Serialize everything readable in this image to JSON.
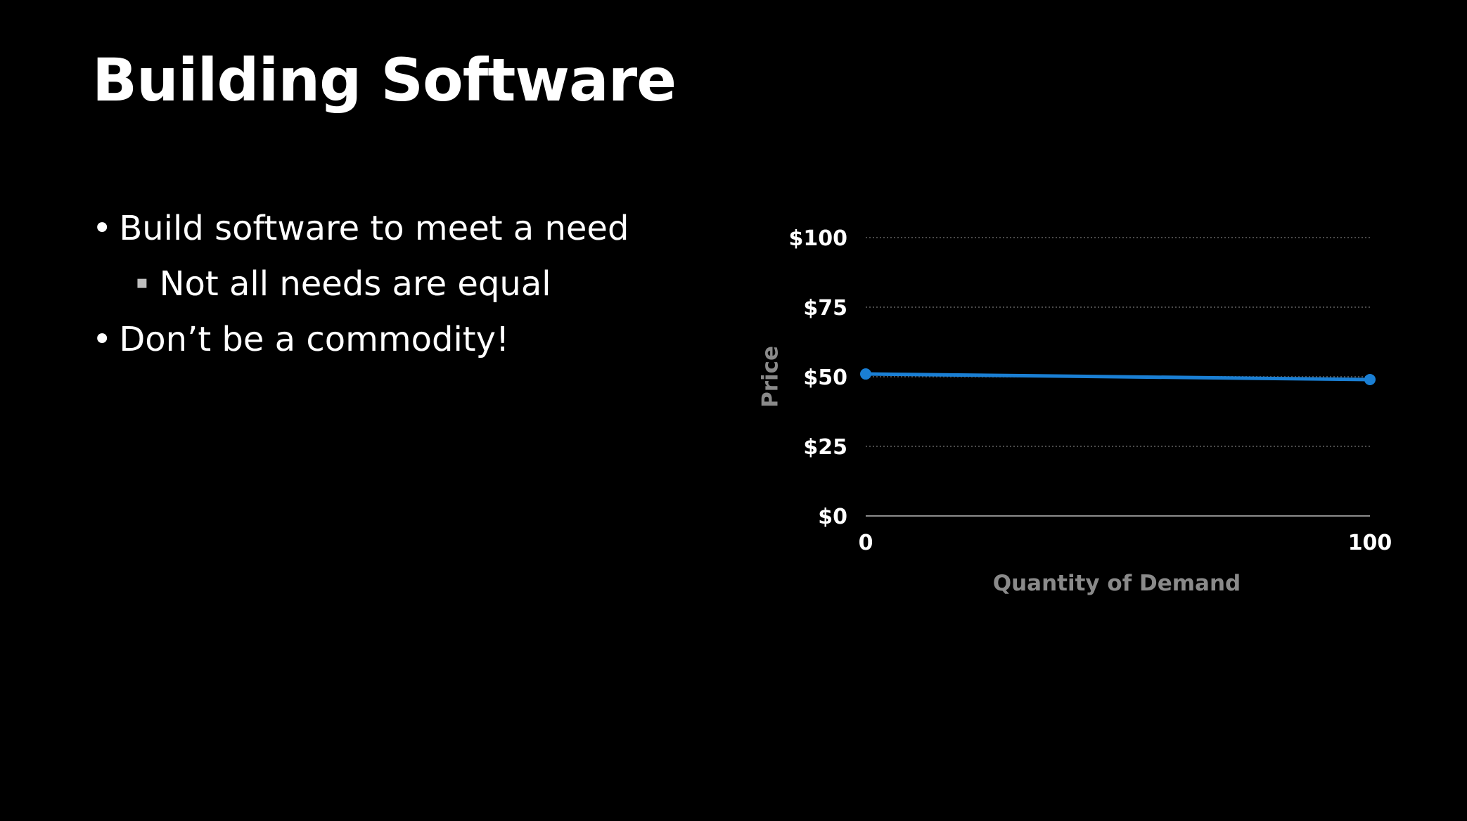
{
  "slide": {
    "title": "Building Software",
    "bullets": [
      {
        "marker": "•",
        "text": "Build software to meet a need"
      },
      {
        "marker": "▪",
        "text": "Not all needs are equal"
      },
      {
        "marker": "•",
        "text": "Don’t be a commodity!"
      }
    ]
  },
  "chart_data": {
    "type": "line",
    "title": "",
    "xlabel": "Quantity of Demand",
    "ylabel": "Price",
    "x": [
      0,
      100
    ],
    "series": [
      {
        "values": [
          51,
          49
        ],
        "color": "#1a7fd4"
      }
    ],
    "xlim": [
      0,
      100
    ],
    "ylim": [
      0,
      100
    ],
    "x_ticks": [
      "0",
      "100"
    ],
    "y_ticks": [
      "$0",
      "$25",
      "$50",
      "$75",
      "$100"
    ],
    "y_tick_values": [
      0,
      25,
      50,
      75,
      100
    ],
    "grid": true,
    "grid_style": "dotted",
    "colors": {
      "tick_label": "#ffffff",
      "axis_title": "#8a8a8a",
      "grid": "#4a4a4a",
      "axis_line": "#8c8c8c"
    }
  }
}
